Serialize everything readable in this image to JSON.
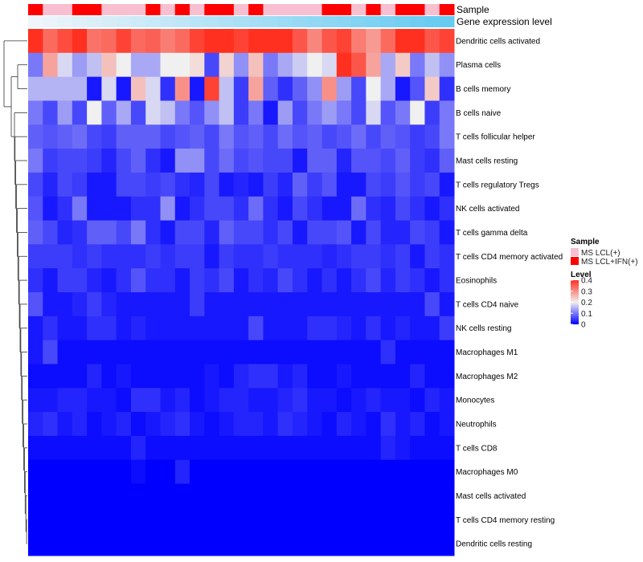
{
  "chart_data": {
    "type": "heatmap",
    "annotation_labels": [
      "Sample",
      "Gene expression level"
    ],
    "sample_groups": [
      "MS LCL(+)",
      "MS LCL+IFN(+)"
    ],
    "sample_colors": [
      "#f7bfcf",
      "#ff0000"
    ],
    "sample_annotation": [
      1,
      0,
      0,
      1,
      1,
      0,
      0,
      0,
      1,
      0,
      1,
      0,
      1,
      1,
      0,
      1,
      0,
      0,
      0,
      0,
      1,
      1,
      0,
      1,
      0,
      1,
      1,
      0,
      1
    ],
    "expression_level": [
      0.02,
      0.05,
      0.08,
      0.11,
      0.14,
      0.17,
      0.2,
      0.23,
      0.26,
      0.29,
      0.32,
      0.35,
      0.38,
      0.41,
      0.44,
      0.47,
      0.5,
      0.53,
      0.56,
      0.59,
      0.62,
      0.65,
      0.68,
      0.71,
      0.74,
      0.77,
      0.8,
      0.83,
      0.86
    ],
    "expression_colors": [
      "#f2f6fa",
      "#4fc3f0"
    ],
    "row_labels": [
      "Dendritic cells activated",
      "Plasma cells",
      "B cells memory",
      "B cells naive",
      "T cells follicular helper",
      "Mast cells resting",
      "T cells regulatory  Tregs",
      "NK cells activated",
      "T cells gamma delta",
      "T cells CD4 memory activated",
      "Eosinophils",
      "T cells CD4 naive",
      "NK cells resting",
      "Macrophages M1",
      "Macrophages M2",
      "Monocytes",
      "Neutrophils",
      "T cells CD8",
      "Macrophages M0",
      "Mast cells activated",
      "T cells CD4 memory resting",
      "Dendritic cells resting"
    ],
    "values": [
      [
        0.4,
        0.34,
        0.37,
        0.4,
        0.33,
        0.34,
        0.38,
        0.34,
        0.35,
        0.32,
        0.34,
        0.38,
        0.41,
        0.42,
        0.38,
        0.42,
        0.4,
        0.42,
        0.36,
        0.31,
        0.36,
        0.38,
        0.32,
        0.29,
        0.34,
        0.4,
        0.4,
        0.36,
        0.38
      ],
      [
        0.1,
        0.28,
        0.18,
        0.13,
        0.16,
        0.25,
        0.2,
        0.14,
        0.14,
        0.2,
        0.2,
        0.22,
        0.06,
        0.23,
        0.12,
        0.25,
        0.1,
        0.14,
        0.17,
        0.2,
        0.18,
        0.42,
        0.36,
        0.28,
        0.14,
        0.24,
        0.1,
        0.16,
        0.12
      ],
      [
        0.15,
        0.15,
        0.15,
        0.15,
        0.02,
        0.18,
        0.02,
        0.25,
        0.18,
        0.04,
        0.3,
        0.02,
        0.38,
        0.16,
        0.05,
        0.28,
        0.08,
        0.04,
        0.08,
        0.12,
        0.3,
        0.13,
        0.06,
        0.2,
        0.14,
        0.02,
        0.07,
        0.24,
        0.04
      ],
      [
        0.1,
        0.06,
        0.13,
        0.06,
        0.2,
        0.08,
        0.14,
        0.06,
        0.18,
        0.16,
        0.1,
        0.07,
        0.12,
        0.16,
        0.05,
        0.1,
        0.02,
        0.13,
        0.06,
        0.1,
        0.13,
        0.1,
        0.06,
        0.18,
        0.07,
        0.1,
        0.2,
        0.05,
        0.1
      ],
      [
        0.08,
        0.07,
        0.08,
        0.09,
        0.06,
        0.05,
        0.08,
        0.08,
        0.08,
        0.06,
        0.07,
        0.08,
        0.06,
        0.1,
        0.07,
        0.08,
        0.06,
        0.09,
        0.07,
        0.08,
        0.06,
        0.07,
        0.09,
        0.06,
        0.08,
        0.07,
        0.05,
        0.06,
        0.1
      ],
      [
        0.1,
        0.05,
        0.06,
        0.06,
        0.05,
        0.03,
        0.06,
        0.08,
        0.04,
        0.02,
        0.12,
        0.12,
        0.06,
        0.09,
        0.06,
        0.07,
        0.06,
        0.06,
        0.02,
        0.08,
        0.08,
        0.03,
        0.07,
        0.07,
        0.06,
        0.08,
        0.05,
        0.04,
        0.08
      ],
      [
        0.06,
        0.03,
        0.06,
        0.05,
        0.02,
        0.02,
        0.06,
        0.06,
        0.05,
        0.06,
        0.04,
        0.03,
        0.06,
        0.02,
        0.03,
        0.02,
        0.05,
        0.03,
        0.08,
        0.05,
        0.07,
        0.02,
        0.02,
        0.06,
        0.05,
        0.07,
        0.05,
        0.06,
        0.02
      ],
      [
        0.07,
        0.02,
        0.04,
        0.1,
        0.02,
        0.02,
        0.02,
        0.04,
        0.04,
        0.12,
        0.02,
        0.04,
        0.06,
        0.06,
        0.04,
        0.09,
        0.04,
        0.02,
        0.06,
        0.04,
        0.02,
        0.02,
        0.09,
        0.04,
        0.03,
        0.06,
        0.04,
        0.02,
        0.04
      ],
      [
        0.08,
        0.06,
        0.03,
        0.04,
        0.08,
        0.08,
        0.06,
        0.1,
        0.04,
        0.02,
        0.06,
        0.06,
        0.03,
        0.08,
        0.06,
        0.06,
        0.04,
        0.06,
        0.02,
        0.06,
        0.06,
        0.07,
        0.02,
        0.06,
        0.03,
        0.03,
        0.06,
        0.05,
        0.02
      ],
      [
        0.05,
        0.05,
        0.05,
        0.04,
        0.05,
        0.04,
        0.04,
        0.04,
        0.05,
        0.04,
        0.05,
        0.05,
        0.02,
        0.05,
        0.04,
        0.04,
        0.05,
        0.04,
        0.04,
        0.04,
        0.03,
        0.04,
        0.05,
        0.05,
        0.04,
        0.05,
        0.02,
        0.05,
        0.04
      ],
      [
        0.04,
        0.02,
        0.05,
        0.05,
        0.03,
        0.02,
        0.04,
        0.07,
        0.04,
        0.04,
        0.02,
        0.05,
        0.04,
        0.06,
        0.02,
        0.04,
        0.03,
        0.06,
        0.04,
        0.02,
        0.04,
        0.02,
        0.04,
        0.06,
        0.03,
        0.05,
        0.04,
        0.02,
        0.04
      ],
      [
        0.07,
        0.02,
        0.02,
        0.03,
        0.05,
        0.03,
        0.02,
        0.02,
        0.02,
        0.02,
        0.02,
        0.05,
        0.02,
        0.02,
        0.02,
        0.02,
        0.02,
        0.02,
        0.02,
        0.02,
        0.02,
        0.02,
        0.02,
        0.02,
        0.02,
        0.02,
        0.02,
        0.06,
        0.02
      ],
      [
        0.02,
        0.04,
        0.02,
        0.02,
        0.04,
        0.04,
        0.02,
        0.03,
        0.02,
        0.02,
        0.02,
        0.02,
        0.02,
        0.02,
        0.02,
        0.06,
        0.02,
        0.02,
        0.02,
        0.04,
        0.04,
        0.03,
        0.02,
        0.04,
        0.02,
        0.03,
        0.02,
        0.02,
        0.05
      ],
      [
        0.02,
        0.06,
        0.01,
        0.01,
        0.01,
        0.01,
        0.01,
        0.01,
        0.01,
        0.01,
        0.01,
        0.01,
        0.01,
        0.01,
        0.01,
        0.01,
        0.01,
        0.01,
        0.01,
        0.01,
        0.01,
        0.01,
        0.01,
        0.01,
        0.04,
        0.01,
        0.01,
        0.01,
        0.01
      ],
      [
        0.01,
        0.01,
        0.01,
        0.01,
        0.03,
        0.01,
        0.02,
        0.01,
        0.01,
        0.01,
        0.01,
        0.01,
        0.02,
        0.01,
        0.03,
        0.04,
        0.04,
        0.02,
        0.03,
        0.01,
        0.01,
        0.02,
        0.01,
        0.01,
        0.01,
        0.01,
        0.03,
        0.01,
        0.01
      ],
      [
        0.02,
        0.02,
        0.03,
        0.03,
        0.02,
        0.02,
        0.01,
        0.04,
        0.04,
        0.02,
        0.03,
        0.01,
        0.02,
        0.03,
        0.03,
        0.02,
        0.02,
        0.03,
        0.04,
        0.02,
        0.02,
        0.01,
        0.02,
        0.03,
        0.02,
        0.02,
        0.01,
        0.03,
        0.02
      ],
      [
        0.03,
        0.04,
        0.02,
        0.03,
        0.01,
        0.02,
        0.03,
        0.01,
        0.02,
        0.03,
        0.04,
        0.02,
        0.01,
        0.02,
        0.03,
        0.03,
        0.02,
        0.04,
        0.03,
        0.02,
        0.01,
        0.03,
        0.02,
        0.01,
        0.04,
        0.02,
        0.03,
        0.01,
        0.02
      ],
      [
        0.01,
        0.01,
        0.01,
        0.01,
        0.01,
        0.01,
        0.01,
        0.03,
        0.01,
        0.01,
        0.01,
        0.01,
        0.01,
        0.01,
        0.01,
        0.01,
        0.01,
        0.01,
        0.01,
        0.01,
        0.01,
        0.01,
        0.01,
        0.01,
        0.03,
        0.02,
        0.01,
        0.01,
        0.01
      ],
      [
        0.0,
        0.0,
        0.0,
        0.0,
        0.0,
        0.0,
        0.0,
        0.01,
        0.0,
        0.0,
        0.03,
        0.0,
        0.0,
        0.0,
        0.0,
        0.0,
        0.0,
        0.0,
        0.0,
        0.0,
        0.0,
        0.0,
        0.0,
        0.0,
        0.0,
        0.0,
        0.0,
        0.0,
        0.0
      ],
      [
        0.0,
        0.0,
        0.0,
        0.0,
        0.0,
        0.0,
        0.0,
        0.0,
        0.0,
        0.0,
        0.0,
        0.0,
        0.0,
        0.0,
        0.0,
        0.0,
        0.0,
        0.0,
        0.0,
        0.0,
        0.0,
        0.0,
        0.0,
        0.0,
        0.0,
        0.0,
        0.0,
        0.0,
        0.0
      ],
      [
        0.0,
        0.0,
        0.0,
        0.0,
        0.0,
        0.0,
        0.0,
        0.0,
        0.0,
        0.0,
        0.0,
        0.0,
        0.0,
        0.0,
        0.0,
        0.0,
        0.0,
        0.0,
        0.0,
        0.0,
        0.0,
        0.0,
        0.0,
        0.0,
        0.0,
        0.0,
        0.0,
        0.0,
        0.0
      ],
      [
        0.0,
        0.0,
        0.0,
        0.0,
        0.0,
        0.0,
        0.0,
        0.0,
        0.0,
        0.0,
        0.0,
        0.0,
        0.0,
        0.0,
        0.0,
        0.0,
        0.0,
        0.0,
        0.0,
        0.0,
        0.0,
        0.0,
        0.0,
        0.0,
        0.0,
        0.0,
        0.0,
        0.0,
        0.0
      ]
    ],
    "color_scale": {
      "stops": [
        0,
        0.2,
        0.4
      ],
      "colors": [
        "#0000ff",
        "#f0f0f0",
        "#ff3020"
      ]
    },
    "legend": {
      "sample_title": "Sample",
      "level_title": "Level",
      "level_ticks": [
        "0.4",
        "0.3",
        "0.2",
        "0.1",
        "0"
      ],
      "level_tick_values": [
        0.4,
        0.3,
        0.2,
        0.1,
        0
      ]
    },
    "dendrogram": "rows"
  }
}
